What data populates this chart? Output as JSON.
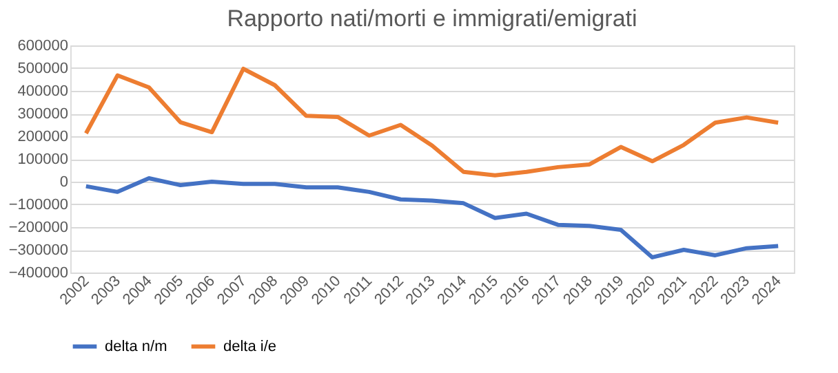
{
  "chart_data": {
    "type": "line",
    "title": "Rapporto nati/morti e immigrati/emigrati",
    "categories": [
      "2002",
      "2003",
      "2004",
      "2005",
      "2006",
      "2007",
      "2008",
      "2009",
      "2010",
      "2011",
      "2012",
      "2013",
      "2014",
      "2015",
      "2016",
      "2017",
      "2018",
      "2019",
      "2020",
      "2021",
      "2022",
      "2023",
      "2024"
    ],
    "series": [
      {
        "name": "delta n/m",
        "color": "#4472c4",
        "values": [
          -20000,
          -45000,
          15000,
          -15000,
          0,
          -10000,
          -10000,
          -25000,
          -25000,
          -45000,
          -78000,
          -83000,
          -95000,
          -160000,
          -141000,
          -190000,
          -195000,
          -212000,
          -333000,
          -300000,
          -324000,
          -293000,
          -283000
        ]
      },
      {
        "name": "delta i/e",
        "color": "#ed7d31",
        "values": [
          213000,
          468000,
          415000,
          262000,
          218000,
          497000,
          425000,
          290000,
          285000,
          203000,
          250000,
          159000,
          43000,
          28000,
          43000,
          64000,
          76000,
          153000,
          90000,
          162000,
          260000,
          283000,
          260000
        ]
      }
    ],
    "ylim": [
      -400000,
      600000
    ],
    "yticks": [
      -400000,
      -300000,
      -200000,
      -100000,
      0,
      100000,
      200000,
      300000,
      400000,
      500000,
      600000
    ],
    "grid": "y",
    "legend": "bottom",
    "marker": "none",
    "line_style": "solid"
  }
}
